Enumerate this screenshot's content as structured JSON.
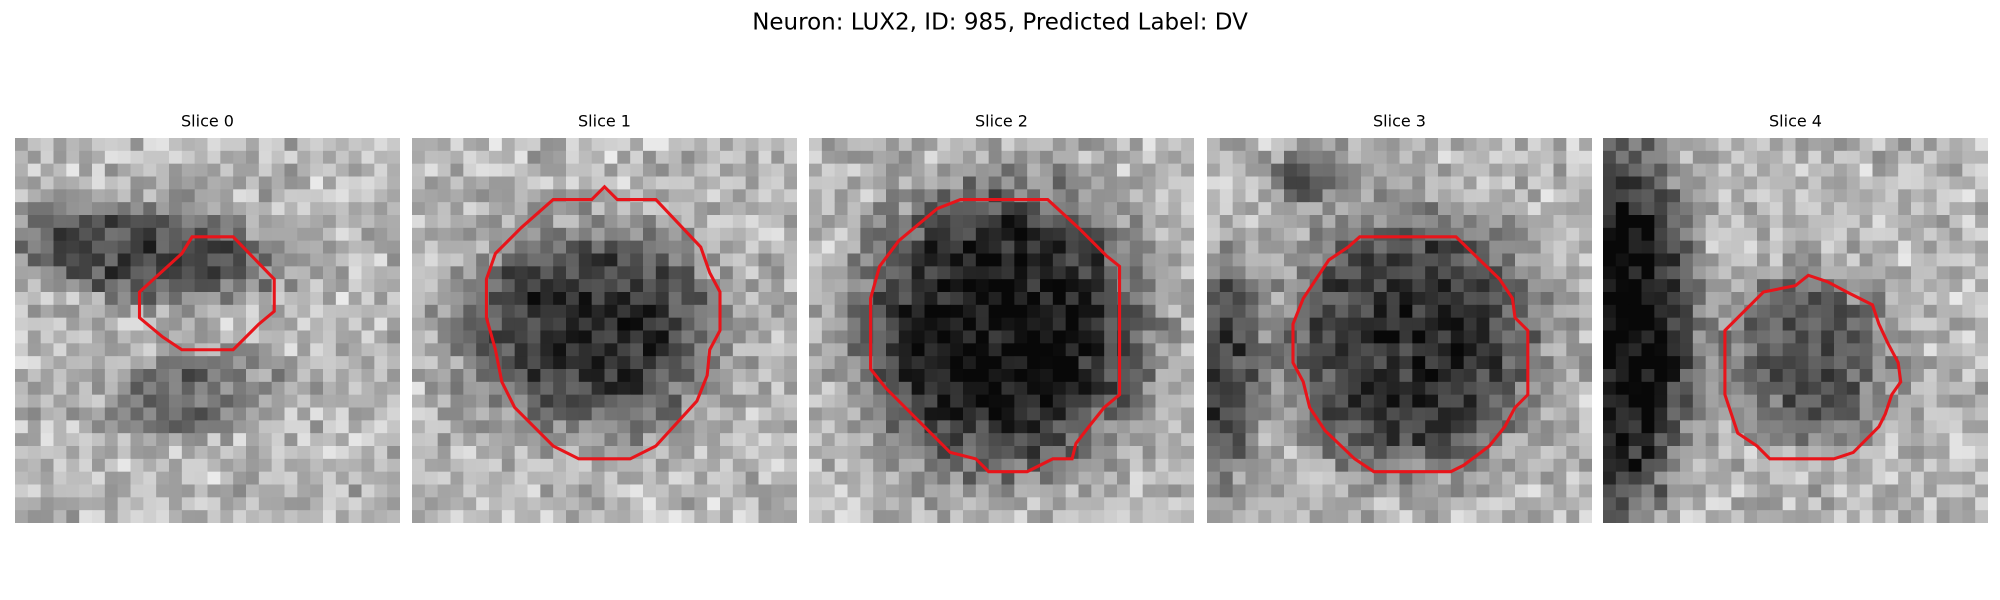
{
  "title": "Neuron: LUX2, ID: 985, Predicted Label: DV",
  "panels": [
    {
      "title": "Slice 0"
    },
    {
      "title": "Slice 1"
    },
    {
      "title": "Slice 2"
    },
    {
      "title": "Slice 3"
    },
    {
      "title": "Slice 4"
    }
  ]
}
